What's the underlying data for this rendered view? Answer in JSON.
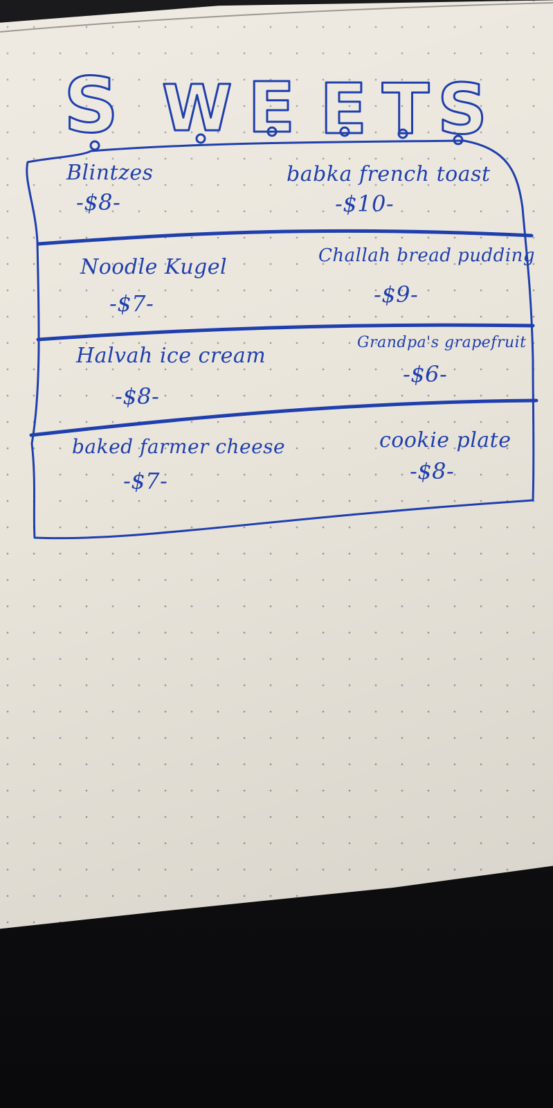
{
  "menu": {
    "title_letters": [
      "S",
      "W",
      "E",
      "E",
      "T",
      "S"
    ],
    "items": [
      {
        "name": "Blintzes",
        "price": "-$8-"
      },
      {
        "name": "babka french toast",
        "price": "-$10-"
      },
      {
        "name": "Noodle Kugel",
        "price": "-$7-"
      },
      {
        "name": "Challah bread pudding",
        "price": "-$9-"
      },
      {
        "name": "Halvah ice cream",
        "price": "-$8-"
      },
      {
        "name": "Grandpa's grapefruit",
        "price": "-$6-"
      },
      {
        "name": "baked farmer cheese",
        "price": "-$7-"
      },
      {
        "name": "cookie plate",
        "price": "-$8-"
      }
    ]
  },
  "colors": {
    "ink": "#1f3fae",
    "paper": "#ebe6dc",
    "background": "#0d0d10"
  }
}
